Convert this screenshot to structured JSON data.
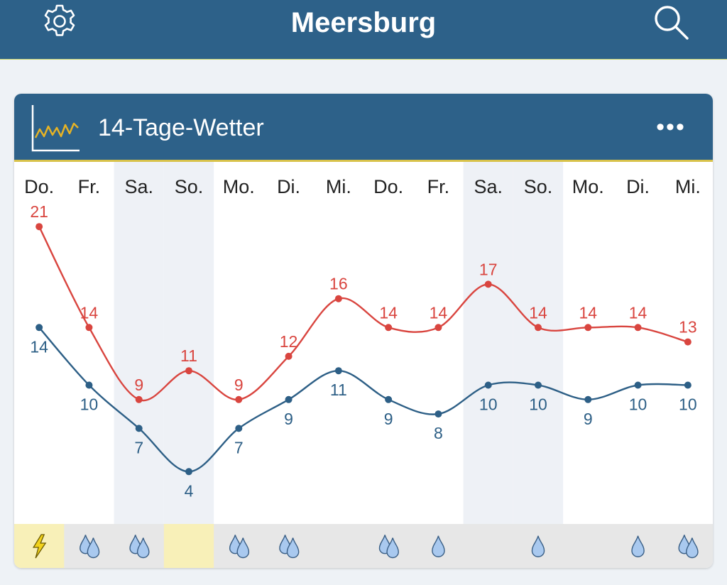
{
  "header": {
    "title": "Meersburg",
    "settings_icon": "gear-icon",
    "search_icon": "search-icon"
  },
  "card": {
    "title": "14-Tage-Wetter",
    "menu_label": "•••"
  },
  "colors": {
    "bar": "#2d6189",
    "high": "#d9453f",
    "low": "#2d5f86",
    "weekend_band": "#eef1f6",
    "accent": "#d8c24a"
  },
  "chart_data": {
    "type": "line",
    "categories": [
      "Do.",
      "Fr.",
      "Sa.",
      "So.",
      "Mo.",
      "Di.",
      "Mi.",
      "Do.",
      "Fr.",
      "Sa.",
      "So.",
      "Mo.",
      "Di.",
      "Mi."
    ],
    "series": [
      {
        "values": [
          21,
          14,
          9,
          11,
          9,
          12,
          16,
          14,
          14,
          17,
          14,
          14,
          14,
          13
        ]
      },
      {
        "values": [
          14,
          10,
          7,
          4,
          7,
          9,
          11,
          9,
          8,
          10,
          10,
          9,
          10,
          10
        ]
      }
    ],
    "weekend_columns": [
      2,
      3,
      9,
      10
    ],
    "weather_icons": [
      "thunder",
      "rain-heavy",
      "rain-heavy",
      "none",
      "rain-heavy",
      "rain-heavy",
      "none",
      "rain-heavy",
      "rain-light",
      "none",
      "rain-light",
      "none",
      "rain-light",
      "rain-heavy"
    ],
    "highlighted_icon_columns": [
      0,
      3
    ],
    "grid": false,
    "legend": "none"
  }
}
